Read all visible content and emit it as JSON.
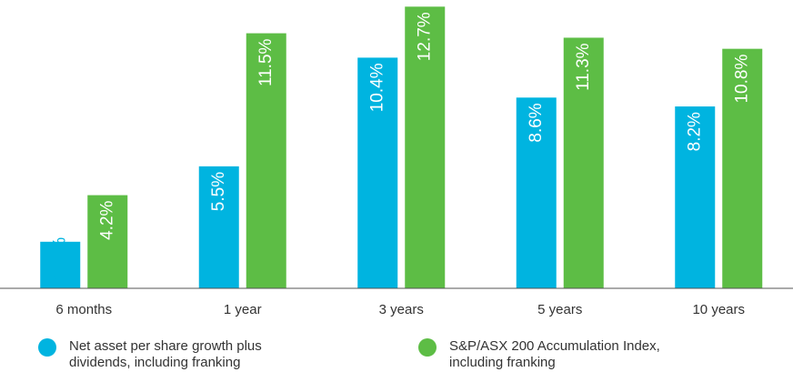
{
  "chart_data": {
    "type": "bar",
    "categories": [
      "6 months",
      "1 year",
      "3 years",
      "5 years",
      "10 years"
    ],
    "series": [
      {
        "name": "Net asset per share growth plus dividends, including franking",
        "color": "#00b4e0",
        "values": [
          2.1,
          5.5,
          10.4,
          8.6,
          8.2
        ],
        "value_labels": [
          "2.1 %",
          "5.5%",
          "10.4%",
          "8.6%",
          "8.2%"
        ]
      },
      {
        "name": "S&P/ASX 200 Accumulation Index, including franking",
        "color": "#5dbd45",
        "values": [
          4.2,
          11.5,
          12.7,
          11.3,
          10.8
        ],
        "value_labels": [
          "4.2%",
          "11.5%",
          "12.7%",
          "11.3%",
          "10.8%"
        ]
      }
    ],
    "ylim": [
      0,
      13
    ]
  }
}
